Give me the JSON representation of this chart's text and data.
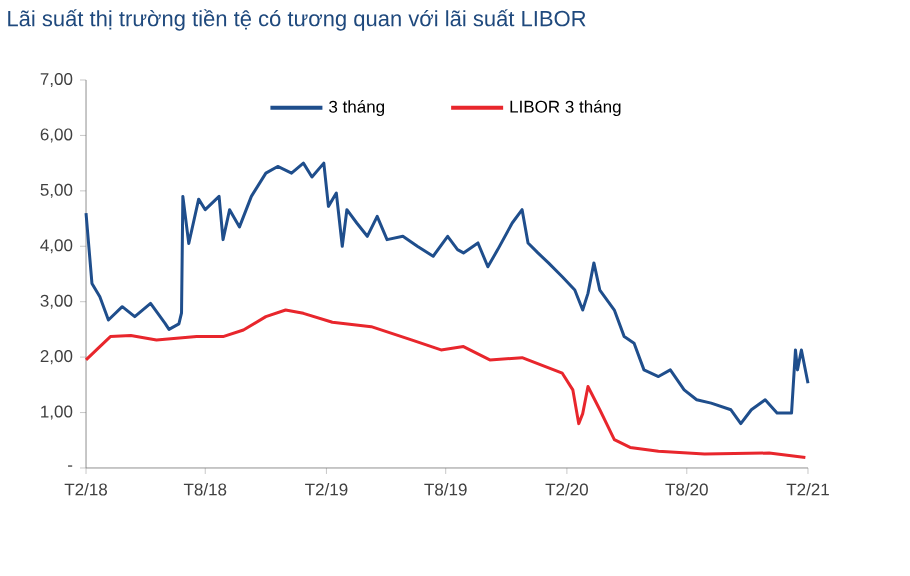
{
  "chart_data": {
    "type": "line",
    "title": "Lãi suất thị trường tiền tệ có tương quan với lãi suất LIBOR",
    "xlim": [
      "2018-02-01",
      "2021-02-01"
    ],
    "xticks": [
      {
        "value": "2018-02-01",
        "label": "T2/18"
      },
      {
        "value": "2018-08-01",
        "label": "T8/18"
      },
      {
        "value": "2019-02-01",
        "label": "T2/19"
      },
      {
        "value": "2019-08-01",
        "label": "T8/19"
      },
      {
        "value": "2020-02-01",
        "label": "T2/20"
      },
      {
        "value": "2020-08-01",
        "label": "T8/20"
      },
      {
        "value": "2021-02-01",
        "label": "T2/21"
      }
    ],
    "ylim": [
      0,
      7
    ],
    "yticks": [
      {
        "value": 0,
        "label": "-"
      },
      {
        "value": 1,
        "label": "1,00"
      },
      {
        "value": 2,
        "label": "2,00"
      },
      {
        "value": 3,
        "label": "3,00"
      },
      {
        "value": 4,
        "label": "4,00"
      },
      {
        "value": 5,
        "label": "5,00"
      },
      {
        "value": 6,
        "label": "6,00"
      },
      {
        "value": 7,
        "label": "7,00"
      }
    ],
    "legend": "top",
    "marker": "none",
    "line_style": "solid",
    "series": [
      {
        "name": "3 tháng",
        "color": "#1f4e8c",
        "x": [
          "2018-02-01",
          "2018-02-10",
          "2018-02-22",
          "2018-03-07",
          "2018-03-28",
          "2018-04-16",
          "2018-05-10",
          "2018-06-01",
          "2018-06-07",
          "2018-06-22",
          "2018-06-26",
          "2018-06-28",
          "2018-07-07",
          "2018-07-22",
          "2018-08-01",
          "2018-08-22",
          "2018-08-28",
          "2018-09-07",
          "2018-09-22",
          "2018-10-10",
          "2018-11-01",
          "2018-11-19",
          "2018-12-10",
          "2018-12-28",
          "2019-01-10",
          "2019-01-28",
          "2019-02-04",
          "2019-02-16",
          "2019-02-25",
          "2019-03-04",
          "2019-03-19",
          "2019-04-04",
          "2019-04-19",
          "2019-05-04",
          "2019-05-28",
          "2019-06-19",
          "2019-07-13",
          "2019-08-04",
          "2019-08-19",
          "2019-08-28",
          "2019-09-19",
          "2019-10-04",
          "2019-10-19",
          "2019-11-10",
          "2019-11-25",
          "2019-12-04",
          "2019-12-19",
          "2020-01-04",
          "2020-01-25",
          "2020-02-13",
          "2020-02-25",
          "2020-03-04",
          "2020-03-13",
          "2020-03-22",
          "2020-04-13",
          "2020-04-28",
          "2020-05-13",
          "2020-05-28",
          "2020-06-19",
          "2020-07-07",
          "2020-07-28",
          "2020-08-16",
          "2020-09-07",
          "2020-10-07",
          "2020-10-22",
          "2020-11-07",
          "2020-11-28",
          "2020-12-16",
          "2021-01-07",
          "2021-01-13",
          "2021-01-16",
          "2021-01-22",
          "2021-02-01"
        ],
        "values": [
          4.6,
          3.33,
          3.09,
          2.67,
          2.91,
          2.73,
          2.97,
          2.61,
          2.5,
          2.6,
          2.8,
          4.9,
          4.05,
          4.85,
          4.66,
          4.9,
          4.12,
          4.66,
          4.35,
          4.9,
          5.32,
          5.44,
          5.32,
          5.5,
          5.25,
          5.5,
          4.72,
          4.96,
          4.0,
          4.66,
          4.42,
          4.18,
          4.54,
          4.12,
          4.18,
          4.0,
          3.82,
          4.18,
          3.94,
          3.88,
          4.06,
          3.63,
          3.94,
          4.42,
          4.66,
          4.06,
          3.88,
          3.7,
          3.45,
          3.21,
          2.85,
          3.15,
          3.7,
          3.21,
          2.85,
          2.37,
          2.25,
          1.77,
          1.65,
          1.77,
          1.41,
          1.23,
          1.17,
          1.05,
          0.8,
          1.05,
          1.23,
          0.99,
          0.99,
          2.13,
          1.77,
          2.13,
          1.53
        ]
      },
      {
        "name": "LIBOR 3 tháng",
        "color": "#e8262c",
        "x": [
          "2018-02-01",
          "2018-02-22",
          "2018-03-10",
          "2018-04-10",
          "2018-05-19",
          "2018-07-19",
          "2018-08-28",
          "2018-09-28",
          "2018-11-01",
          "2018-12-01",
          "2018-12-28",
          "2019-02-10",
          "2019-04-10",
          "2019-06-10",
          "2019-07-25",
          "2019-08-28",
          "2019-10-07",
          "2019-11-25",
          "2020-01-25",
          "2020-02-10",
          "2020-02-19",
          "2020-02-25",
          "2020-03-04",
          "2020-03-22",
          "2020-04-13",
          "2020-05-07",
          "2020-06-19",
          "2020-08-28",
          "2020-12-04",
          "2021-01-28"
        ],
        "values": [
          1.95,
          2.19,
          2.37,
          2.39,
          2.31,
          2.37,
          2.37,
          2.49,
          2.73,
          2.85,
          2.79,
          2.63,
          2.55,
          2.31,
          2.13,
          2.19,
          1.95,
          1.99,
          1.71,
          1.41,
          0.8,
          0.98,
          1.47,
          1.05,
          0.51,
          0.37,
          0.3,
          0.25,
          0.27,
          0.19
        ]
      }
    ]
  }
}
